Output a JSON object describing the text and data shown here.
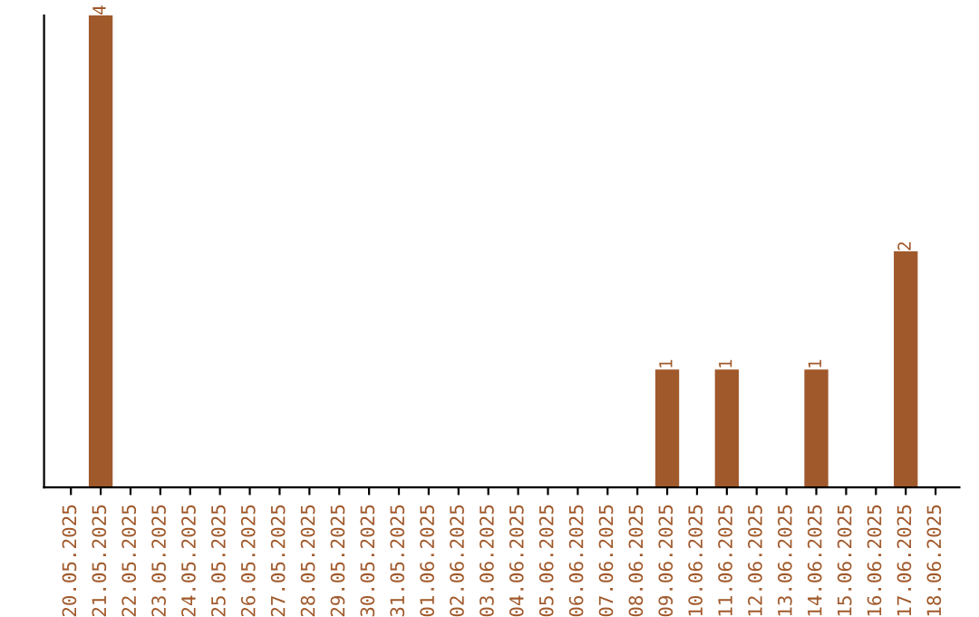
{
  "chart_data": {
    "type": "bar",
    "categories": [
      "20.05.2025",
      "21.05.2025",
      "22.05.2025",
      "23.05.2025",
      "24.05.2025",
      "25.05.2025",
      "26.05.2025",
      "27.05.2025",
      "28.05.2025",
      "29.05.2025",
      "30.05.2025",
      "31.05.2025",
      "01.06.2025",
      "02.06.2025",
      "03.06.2025",
      "04.06.2025",
      "05.06.2025",
      "06.06.2025",
      "07.06.2025",
      "08.06.2025",
      "09.06.2025",
      "10.06.2025",
      "11.06.2025",
      "12.06.2025",
      "13.06.2025",
      "14.06.2025",
      "15.06.2025",
      "16.06.2025",
      "17.06.2025",
      "18.06.2025"
    ],
    "values": [
      0,
      4,
      0,
      0,
      0,
      0,
      0,
      0,
      0,
      0,
      0,
      0,
      0,
      0,
      0,
      0,
      0,
      0,
      0,
      0,
      1,
      0,
      1,
      0,
      0,
      1,
      0,
      0,
      2,
      0
    ],
    "value_labels": [
      null,
      "4",
      null,
      null,
      null,
      null,
      null,
      null,
      null,
      null,
      null,
      null,
      null,
      null,
      null,
      null,
      null,
      null,
      null,
      null,
      "1",
      null,
      "1",
      null,
      null,
      "1",
      null,
      null,
      "2",
      null
    ],
    "color": "#a0592b",
    "grid": false,
    "legend": false
  }
}
